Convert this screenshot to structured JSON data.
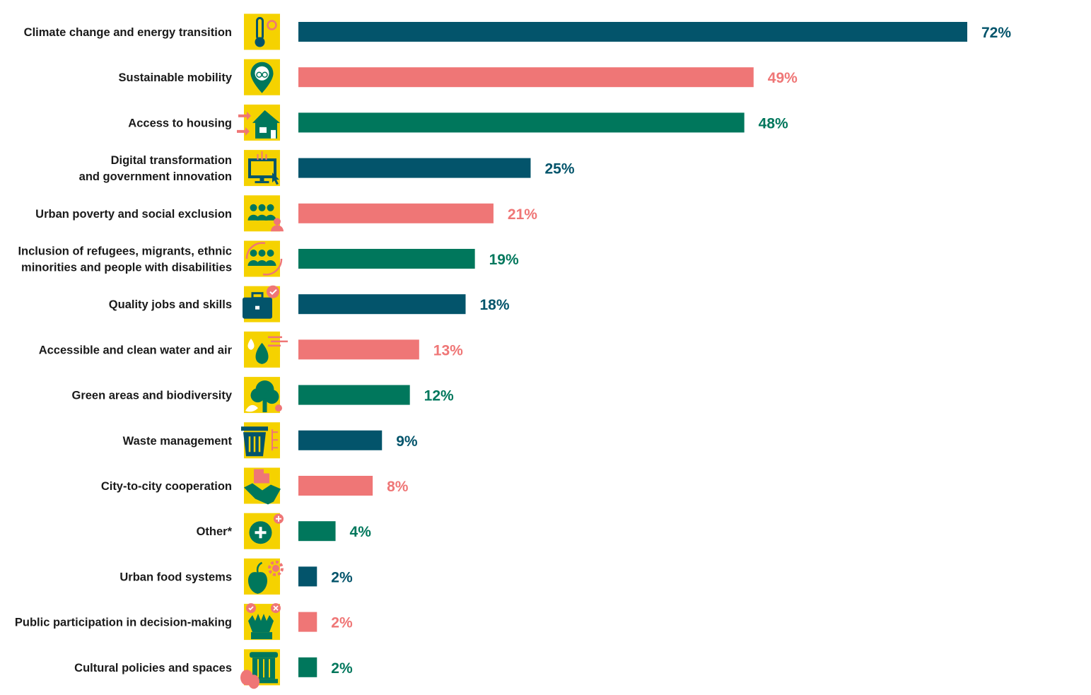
{
  "colors": {
    "navy": "#03546b",
    "salmon": "#ef7676",
    "green": "#00775c",
    "icon_bg": "#f5d200"
  },
  "chart_data": {
    "type": "bar",
    "orientation": "horizontal",
    "title": "",
    "xlabel": "",
    "ylabel": "",
    "xlim": [
      0,
      72
    ],
    "unit": "%",
    "categories": [
      [
        "Climate change and energy transition"
      ],
      [
        "Sustainable mobility"
      ],
      [
        "Access to housing"
      ],
      [
        "Digital transformation",
        "and government innovation"
      ],
      [
        "Urban poverty and social exclusion"
      ],
      [
        "Inclusion of refugees, migrants, ethnic",
        "minorities and people with disabilities"
      ],
      [
        "Quality jobs and skills"
      ],
      [
        "Accessible and clean water and air"
      ],
      [
        "Green areas and biodiversity"
      ],
      [
        "Waste management"
      ],
      [
        "City-to-city cooperation"
      ],
      [
        "Other*"
      ],
      [
        "Urban food systems"
      ],
      [
        "Public participation in decision-making"
      ],
      [
        "Cultural policies and spaces"
      ]
    ],
    "values": [
      72,
      49,
      48,
      25,
      21,
      19,
      18,
      13,
      12,
      9,
      8,
      4,
      2,
      2,
      2
    ],
    "value_labels": [
      "72%",
      "49%",
      "48%",
      "25%",
      "21%",
      "19%",
      "18%",
      "13%",
      "12%",
      "9%",
      "8%",
      "4%",
      "2%",
      "2%",
      "2%"
    ],
    "bar_colors": [
      "navy",
      "salmon",
      "green",
      "navy",
      "salmon",
      "green",
      "navy",
      "salmon",
      "green",
      "navy",
      "salmon",
      "green",
      "navy",
      "salmon",
      "green"
    ],
    "icons": [
      "thermometer-sun-icon",
      "map-pin-bicycle-icon",
      "house-arrows-icon",
      "monitor-cursor-icon",
      "people-group-icon",
      "people-cycle-arrows-icon",
      "briefcase-check-icon",
      "water-drop-wind-icon",
      "tree-leaf-icon",
      "trash-bin-icon",
      "handshake-building-icon",
      "plus-circle-icon",
      "apple-gear-icon",
      "raised-hands-vote-icon",
      "column-theatre-masks-icon"
    ],
    "grid": false,
    "legend": "none"
  }
}
